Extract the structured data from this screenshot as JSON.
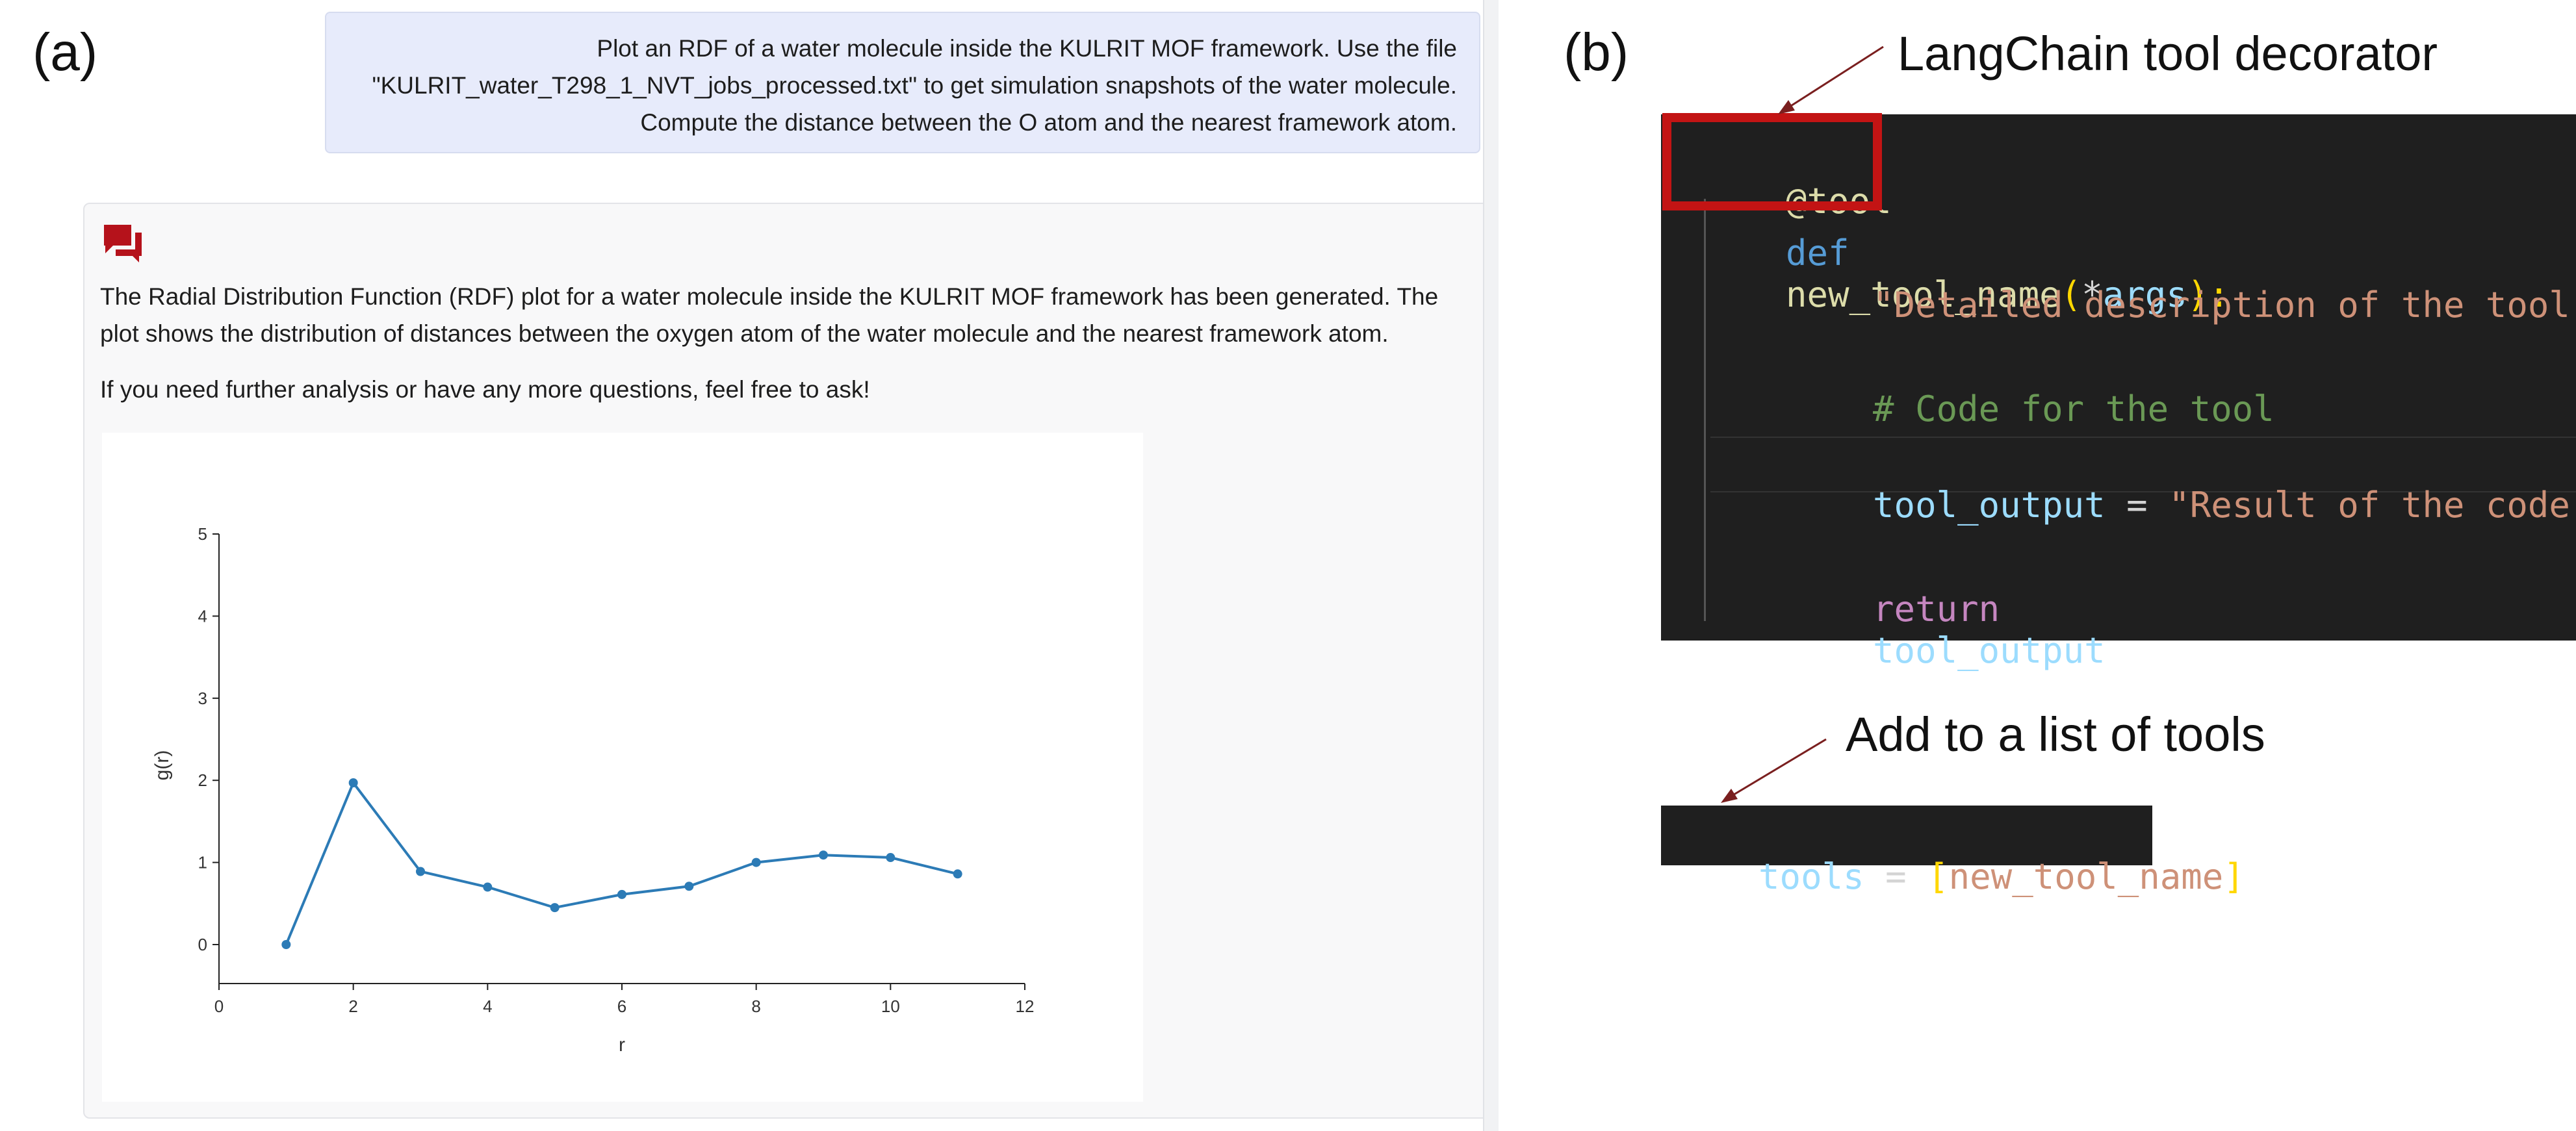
{
  "panel_a": {
    "label": "(a)",
    "user_message": {
      "line1": "Plot an RDF of a water molecule inside the KULRIT MOF framework. Use the file",
      "line2": "\"KULRIT_water_T298_1_NVT_jobs_processed.txt\" to get simulation snapshots of the water molecule.",
      "line3": "Compute the distance between the O atom and the nearest framework atom."
    },
    "assistant_message": {
      "icon": "chat-bubbles-icon",
      "line1": "The Radial Distribution Function (RDF) plot for a water molecule inside the KULRIT MOF framework has been generated. The",
      "line2": "plot shows the distribution of distances between the oxygen atom of the water molecule and the nearest framework atom.",
      "follow_up": "If you need further analysis or have any more questions, feel free to ask!"
    }
  },
  "chart_data": {
    "type": "line",
    "xlabel": "r",
    "ylabel": "g(r)",
    "xlim": [
      0,
      12
    ],
    "ylim": [
      0,
      5
    ],
    "x_ticks": [
      0,
      2,
      4,
      6,
      8,
      10,
      12
    ],
    "y_ticks": [
      0,
      1,
      2,
      3,
      4,
      5
    ],
    "x": [
      1,
      2,
      3,
      4,
      5,
      6,
      7,
      8,
      9,
      10,
      11
    ],
    "y": [
      0,
      1.97,
      0.89,
      0.7,
      0.45,
      0.61,
      0.71,
      1.0,
      1.09,
      1.06,
      0.86
    ],
    "color": "#2c7bb6",
    "grid": false
  },
  "panel_b": {
    "label": "(b)",
    "annotation_decorator": "LangChain tool decorator",
    "annotation_list": "Add to a list of tools",
    "code": {
      "decorator": "@tool",
      "def_kw": "def",
      "func_name": "new_tool_name",
      "open_paren": "(",
      "star": "*",
      "args": "args",
      "close_sig": "):",
      "docstring": "\"Detailed description of the tool.\"",
      "comment": "# Code for the tool",
      "var_name": "tool_output",
      "assign": " = ",
      "result_str": "\"Result of the code.\"",
      "return_kw": "return",
      "return_var": "tool_output"
    },
    "tools_code": {
      "var": "tools",
      "assign": " = ",
      "open_bracket": "[",
      "item": "new_tool_name",
      "close_bracket": "]"
    },
    "colors": {
      "code_bg": "#1f1f1f",
      "highlight": "#c31414",
      "keyword_blue": "#569cd6",
      "function_yellow": "#dcdcaa",
      "string_orange": "#ce9178",
      "comment_green": "#6a9955",
      "variable_cyan": "#9cdcfe",
      "control_pink": "#c586c0",
      "bracket_gold": "#ffd700"
    }
  }
}
